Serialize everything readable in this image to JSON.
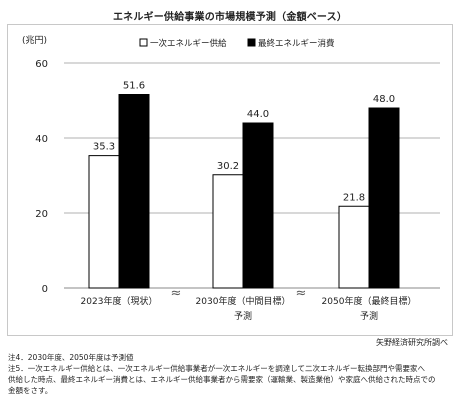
{
  "chart_data": {
    "type": "bar",
    "title": "エネルギー供給事業の市場規模予測（金額ベース）",
    "unit_label": "(兆円)",
    "ylim": [
      0,
      60
    ],
    "yticks": [
      "0",
      "20",
      "40",
      "60"
    ],
    "grid": true,
    "legend_position": "top",
    "categories": [
      "2023年度（現状）",
      "2030年度（中間目標）",
      "2050年度（最終目標）"
    ],
    "category_sublabels": [
      "",
      "予測",
      "予測"
    ],
    "series": [
      {
        "name": "一次エネルギー供給",
        "values": [
          35.3,
          30.2,
          21.8
        ],
        "value_labels": [
          "35.3",
          "30.2",
          "21.8"
        ],
        "fill": "#ffffff"
      },
      {
        "name": "最終エネルギー消費",
        "values": [
          51.6,
          44.0,
          48.0
        ],
        "value_labels": [
          "51.6",
          "44.0",
          "48.0"
        ],
        "fill": "#000000"
      }
    ],
    "axis_break_marks": "≈"
  },
  "source": "矢野経済研究所調べ",
  "notes": [
    "注4．2030年度、2050年度は予測値",
    "注5．一次エネルギー供給とは、一次エネルギー供給事業者が一次エネルギーを調達して二次エネルギー転換部門や需要家へ",
    "供給した時点、最終エネルギー消費とは、エネルギー供給事業者から需要家（運輸業、製造業他）や家庭へ供給された時点での",
    "金額をさす。"
  ]
}
